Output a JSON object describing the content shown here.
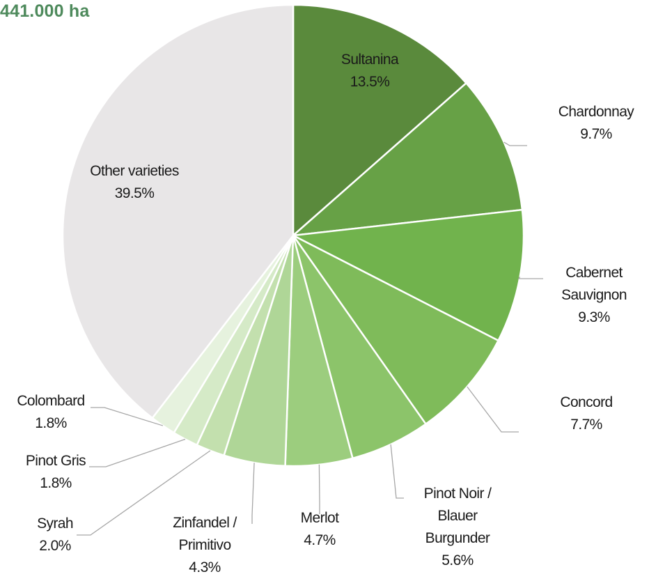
{
  "chart_data": {
    "type": "pie",
    "title": "441.000 ha",
    "slices": [
      {
        "name": "Sultanina",
        "lines": [
          "Sultanina"
        ],
        "value": 13.5,
        "label": "13.5%",
        "color": "#5a8a3c"
      },
      {
        "name": "Chardonnay",
        "lines": [
          "Chardonnay"
        ],
        "value": 9.7,
        "label": "9.7%",
        "color": "#67a146"
      },
      {
        "name": "Cabernet Sauvignon",
        "lines": [
          "Cabernet",
          "Sauvignon"
        ],
        "value": 9.3,
        "label": "9.3%",
        "color": "#71b34d"
      },
      {
        "name": "Concord",
        "lines": [
          "Concord"
        ],
        "value": 7.7,
        "label": "7.7%",
        "color": "#7fbb5a"
      },
      {
        "name": "Pinot Noir / Blauer Burgunder",
        "lines": [
          "Pinot Noir /",
          "Blauer",
          "Burgunder"
        ],
        "value": 5.6,
        "label": "5.6%",
        "color": "#8cc46a"
      },
      {
        "name": "Merlot",
        "lines": [
          "Merlot"
        ],
        "value": 4.7,
        "label": "4.7%",
        "color": "#9ccd7e"
      },
      {
        "name": "Zinfandel / Primitivo",
        "lines": [
          "Zinfandel /",
          "Primitivo"
        ],
        "value": 4.3,
        "label": "4.3%",
        "color": "#afd697"
      },
      {
        "name": "Syrah",
        "lines": [
          "Syrah"
        ],
        "value": 2.0,
        "label": "2.0%",
        "color": "#c3e0ae"
      },
      {
        "name": "Pinot Gris",
        "lines": [
          "Pinot Gris"
        ],
        "value": 1.8,
        "label": "1.8%",
        "color": "#d5eac7"
      },
      {
        "name": "Colombard",
        "lines": [
          "Colombard"
        ],
        "value": 1.8,
        "label": "1.8%",
        "color": "#e6f2de"
      },
      {
        "name": "Other varieties",
        "lines": [
          "Other varieties"
        ],
        "value": 39.5,
        "label": "39.5%",
        "color": "#e8e6e7"
      }
    ],
    "legend": "none"
  }
}
